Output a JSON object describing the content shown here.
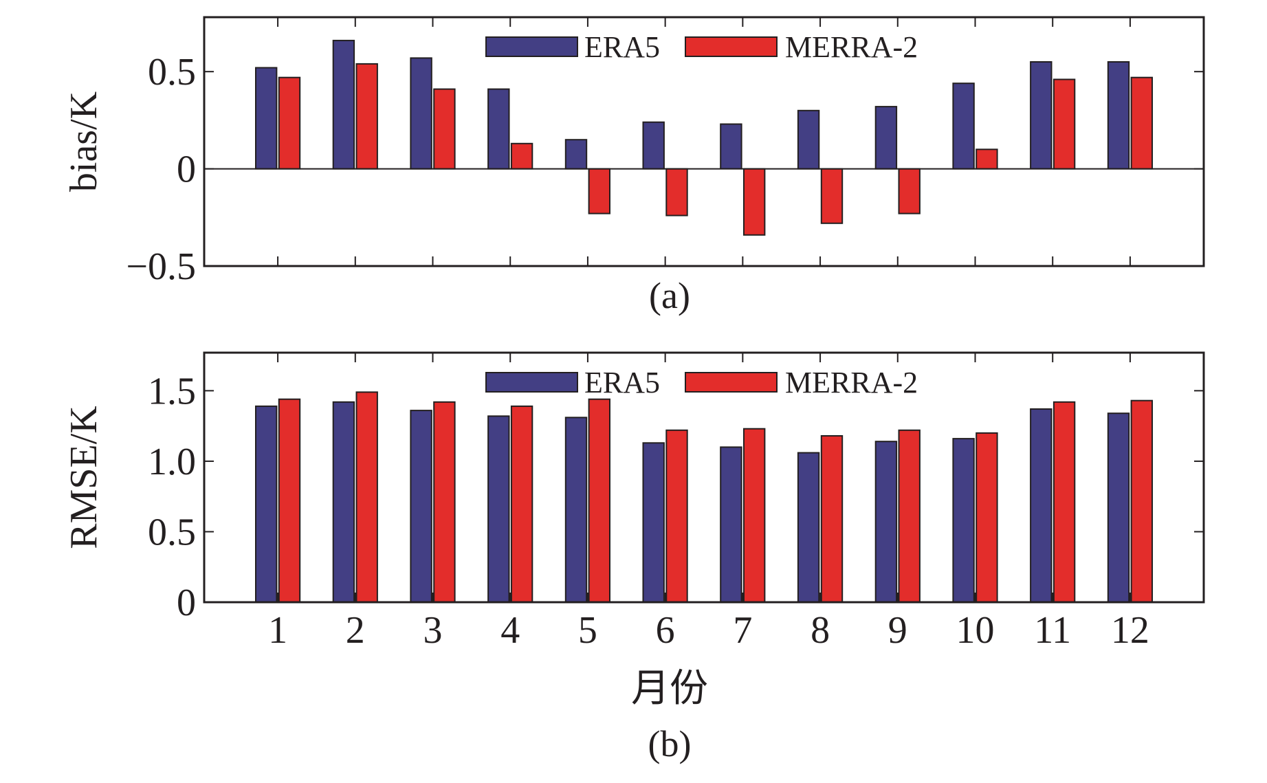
{
  "colors": {
    "era5": "#433f84",
    "merra2": "#e32d2b",
    "axis": "#231f20"
  },
  "chart_data": [
    {
      "type": "bar",
      "panel": "(a)",
      "categories": [
        "1",
        "2",
        "3",
        "4",
        "5",
        "6",
        "7",
        "8",
        "9",
        "10",
        "11",
        "12"
      ],
      "series": [
        {
          "name": "ERA5",
          "values": [
            0.52,
            0.66,
            0.57,
            0.41,
            0.15,
            0.24,
            0.23,
            0.3,
            0.32,
            0.44,
            0.55,
            0.55
          ]
        },
        {
          "name": "MERRA-2",
          "values": [
            0.47,
            0.54,
            0.41,
            0.13,
            -0.23,
            -0.24,
            -0.34,
            -0.28,
            -0.23,
            0.1,
            0.46,
            0.47
          ]
        }
      ],
      "title": "",
      "xlabel": "",
      "ylabel": "bias/K",
      "ylim": [
        -0.5,
        0.78
      ],
      "yticks": [
        -0.5,
        0,
        0.5
      ],
      "ytick_labels": [
        "−0.5",
        "0",
        "0.5"
      ],
      "show_xtick_labels": false,
      "zero_line": true,
      "legend": "top-center"
    },
    {
      "type": "bar",
      "panel": "(b)",
      "categories": [
        "1",
        "2",
        "3",
        "4",
        "5",
        "6",
        "7",
        "8",
        "9",
        "10",
        "11",
        "12"
      ],
      "series": [
        {
          "name": "ERA5",
          "values": [
            1.39,
            1.42,
            1.36,
            1.32,
            1.31,
            1.13,
            1.1,
            1.06,
            1.14,
            1.16,
            1.37,
            1.34
          ]
        },
        {
          "name": "MERRA-2",
          "values": [
            1.44,
            1.49,
            1.42,
            1.39,
            1.44,
            1.22,
            1.23,
            1.18,
            1.22,
            1.2,
            1.42,
            1.43
          ]
        }
      ],
      "title": "",
      "xlabel": "月份",
      "ylabel": "RMSE/K",
      "ylim": [
        0,
        1.77
      ],
      "yticks": [
        0,
        0.5,
        1.0,
        1.5
      ],
      "ytick_labels": [
        "0",
        "0.5",
        "1.0",
        "1.5"
      ],
      "show_xtick_labels": true,
      "zero_line": false,
      "legend": "top-center"
    }
  ]
}
